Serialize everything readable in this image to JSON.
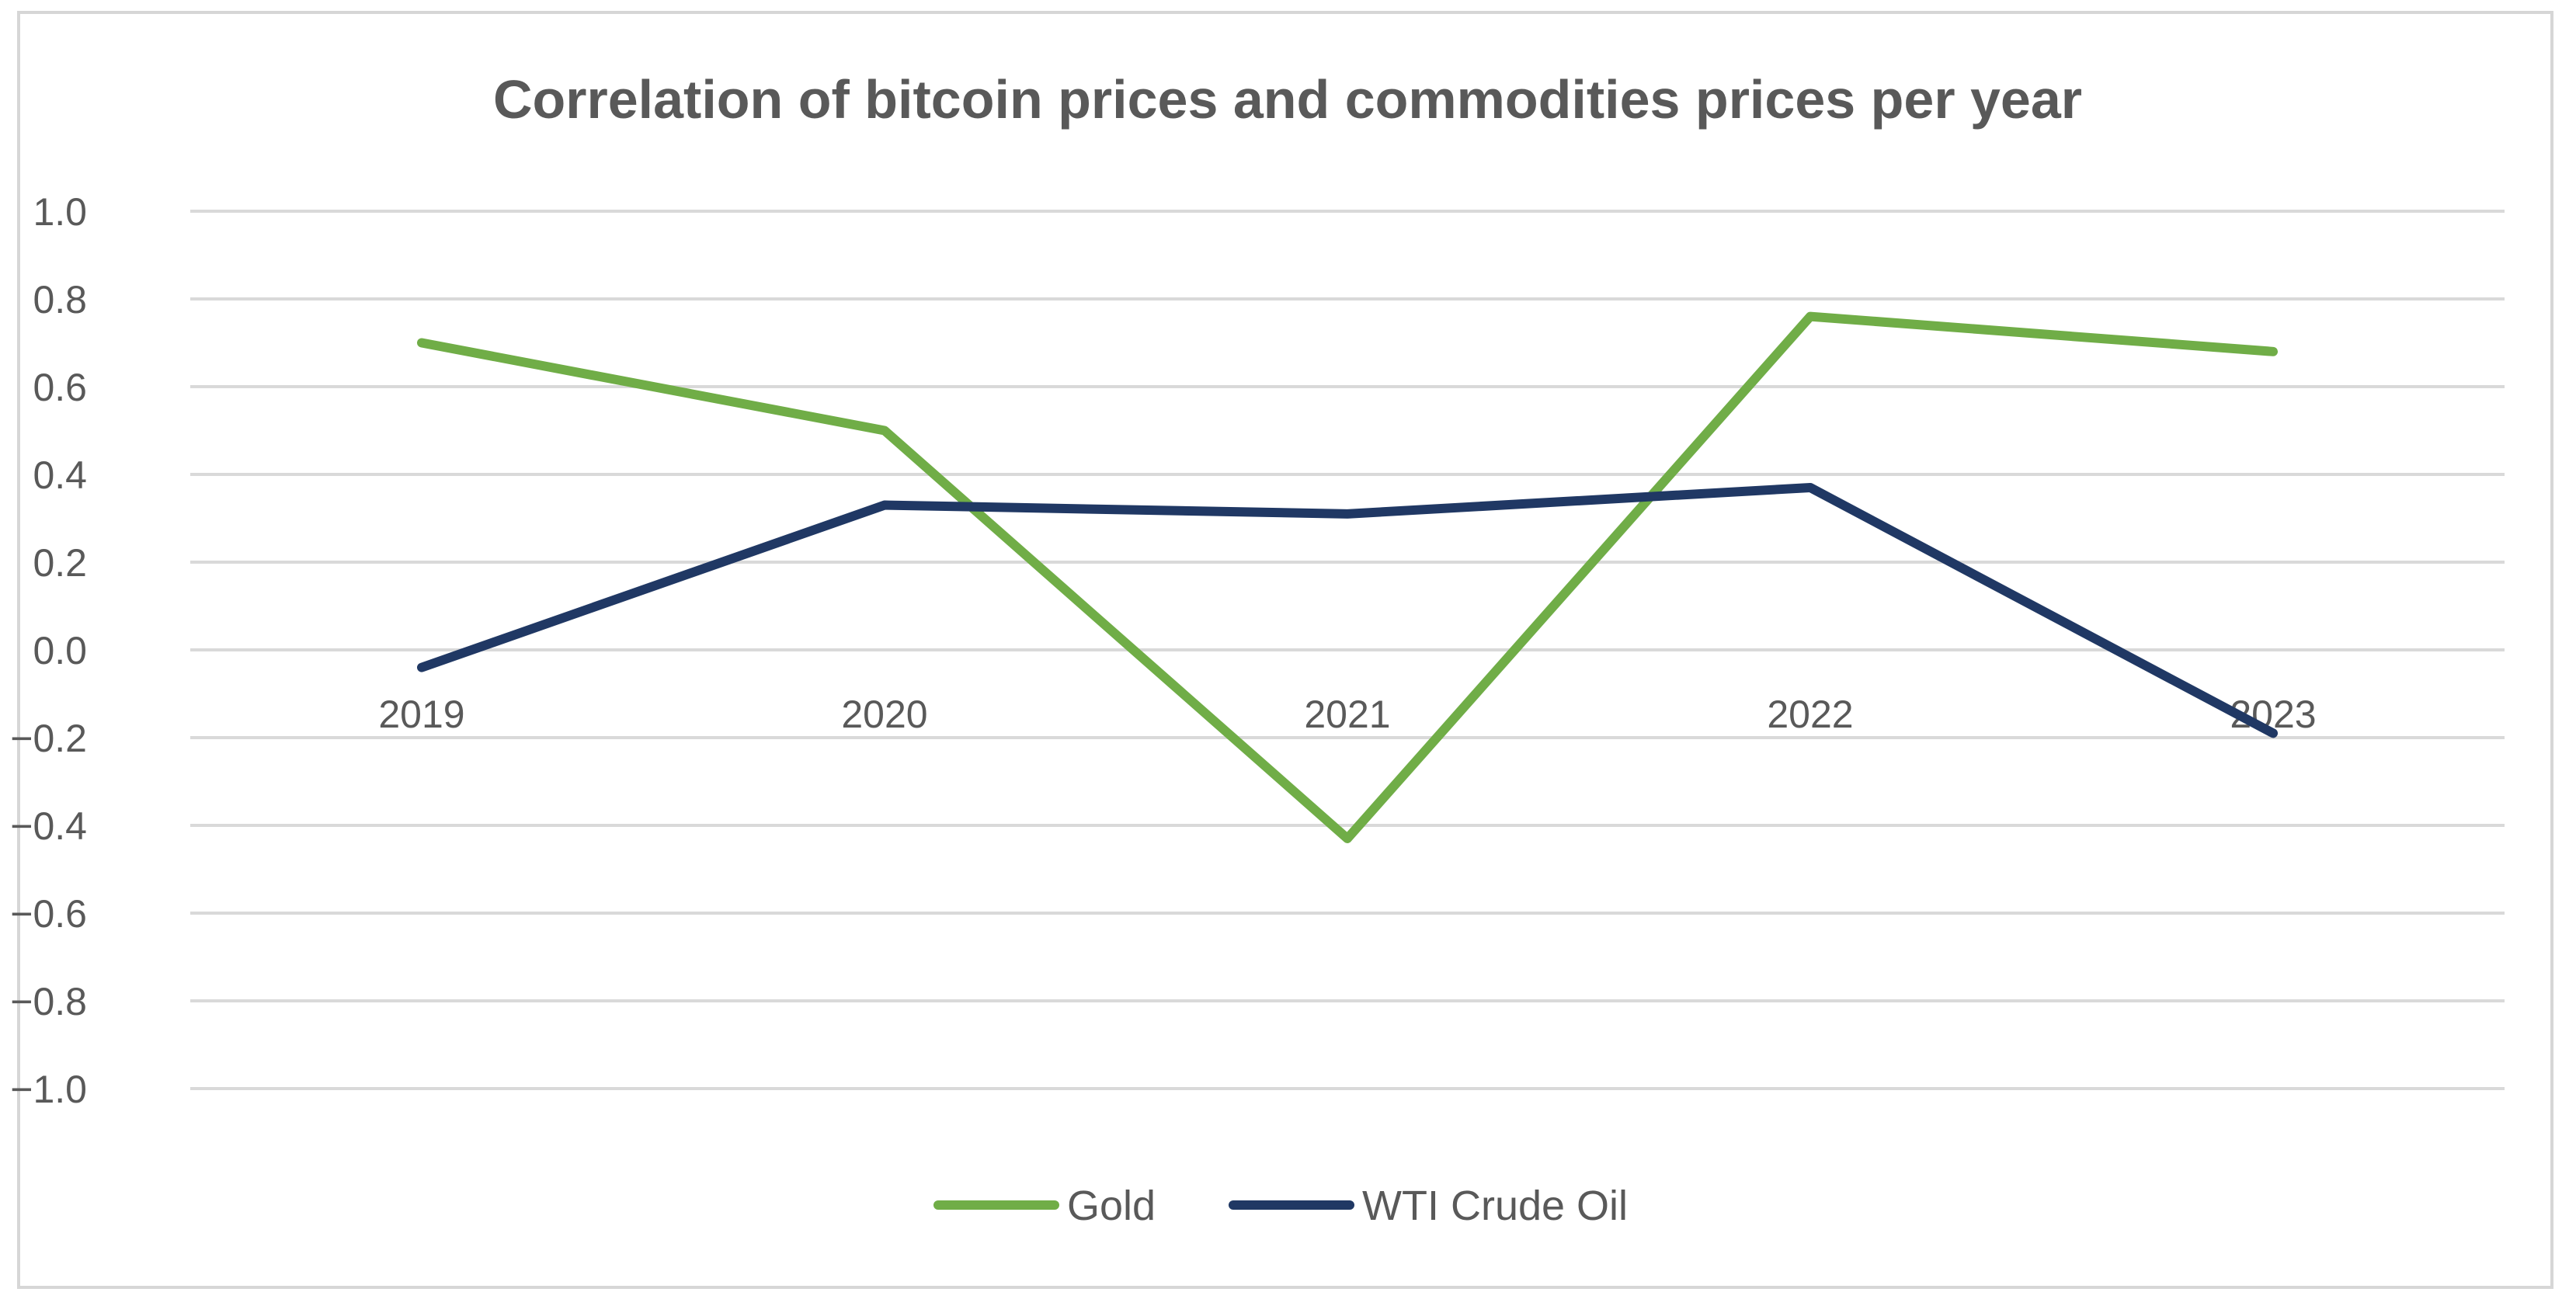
{
  "chart_data": {
    "type": "line",
    "title": "Correlation of bitcoin prices and commodities prices per year",
    "categories": [
      "2019",
      "2020",
      "2021",
      "2022",
      "2023"
    ],
    "series": [
      {
        "name": "Gold",
        "color": "#70ad47",
        "values": [
          0.7,
          0.5,
          -0.43,
          0.76,
          0.68
        ]
      },
      {
        "name": "WTI Crude Oil",
        "color": "#203864",
        "values": [
          -0.04,
          0.33,
          0.31,
          0.37,
          -0.19
        ]
      }
    ],
    "ylim": [
      -1.0,
      1.0
    ],
    "y_ticks": [
      "1.0",
      "0.8",
      "0.6",
      "0.4",
      "0.2",
      "0.0",
      "-0.2",
      "-0.4",
      "-0.6",
      "-0.8",
      "-1.0"
    ],
    "grid": true,
    "legend_position": "bottom"
  }
}
